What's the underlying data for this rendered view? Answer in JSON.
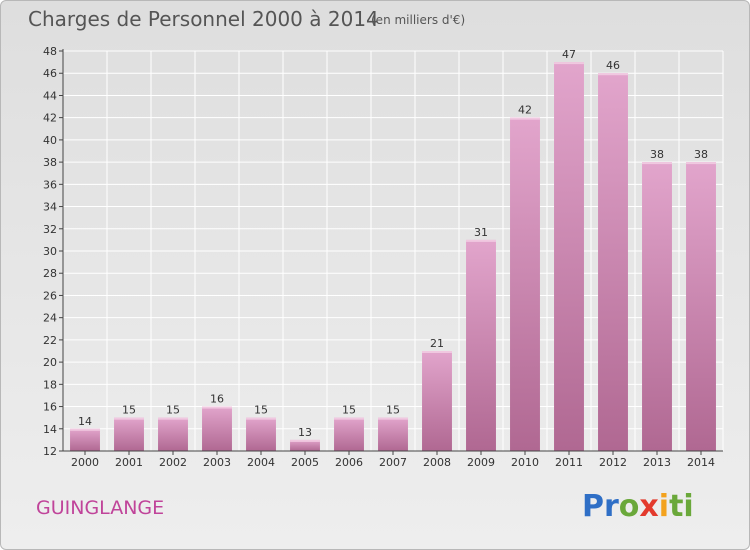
{
  "header": {
    "title": "Charges de Personnel 2000 à 2014",
    "subtitle": "(en milliers d'€)"
  },
  "footer": {
    "town": "GUINGLANGE",
    "logo_letters": [
      "P",
      "r",
      "o",
      "x",
      "i",
      "t",
      "i"
    ],
    "logo_colors": [
      "#2f6fc6",
      "#2f6fc6",
      "#6aa83a",
      "#e33a2d",
      "#f3a21d",
      "#6aa83a",
      "#6aa83a"
    ]
  },
  "colors": {
    "bar_top": "#e2a5cc",
    "bar_bottom": "#b06892",
    "grid": "#ffffff",
    "axis": "#444444"
  },
  "chart_data": {
    "type": "bar",
    "title": "Charges de Personnel 2000 à 2014",
    "subtitle": "(en milliers d'€)",
    "categories": [
      "2000",
      "2001",
      "2002",
      "2003",
      "2004",
      "2005",
      "2006",
      "2007",
      "2008",
      "2009",
      "2010",
      "2011",
      "2012",
      "2013",
      "2014"
    ],
    "values": [
      14,
      15,
      15,
      16,
      15,
      13,
      15,
      15,
      21,
      31,
      42,
      47,
      46,
      38,
      38
    ],
    "ylim": [
      12,
      48
    ],
    "yticks": [
      12,
      14,
      16,
      18,
      20,
      22,
      24,
      26,
      28,
      30,
      32,
      34,
      36,
      38,
      40,
      42,
      44,
      46,
      48
    ],
    "grid": true,
    "data_labels": true
  }
}
